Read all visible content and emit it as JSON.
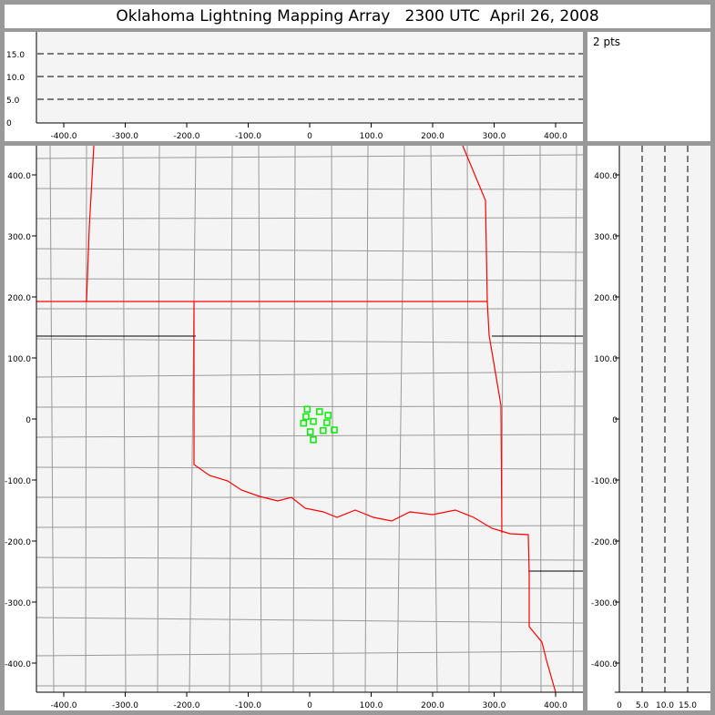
{
  "title": "Oklahoma Lightning Mapping Array   2300 UTC  April 26, 2008",
  "info": {
    "point_count": "2 pts"
  },
  "axes": {
    "x_ticks": [
      "-400.0",
      "-300.0",
      "-200.0",
      "-100.0",
      "0",
      "100.0",
      "200.0",
      "300.0",
      "400.0"
    ],
    "x_values": [
      -400,
      -300,
      -200,
      -100,
      0,
      100,
      200,
      300,
      400
    ],
    "y_ticks": [
      "400.0",
      "300.0",
      "200.0",
      "100.0",
      "0",
      "-100.0",
      "-200.0",
      "-300.0",
      "-400.0"
    ],
    "y_values": [
      400,
      300,
      200,
      100,
      0,
      -100,
      -200,
      -300,
      -400
    ],
    "alt_ticks": [
      "0",
      "5.0",
      "10.0",
      "15.0"
    ],
    "alt_values": [
      0,
      5,
      10,
      15
    ],
    "xy_range": [
      -445,
      445
    ],
    "alt_range": [
      0,
      20
    ]
  },
  "stations": [
    [
      -4,
      16
    ],
    [
      -6,
      4
    ],
    [
      16,
      12
    ],
    [
      30,
      6
    ],
    [
      -10,
      -7
    ],
    [
      6,
      -4
    ],
    [
      28,
      -6
    ],
    [
      1,
      -21
    ],
    [
      22,
      -19
    ],
    [
      40,
      -18
    ],
    [
      6,
      -34
    ]
  ],
  "colors": {
    "state_border": "#ff0000",
    "county_border": "#999999",
    "station": "#00ee00",
    "plot_bg": "#f4f4f4",
    "frame": "#999999"
  }
}
